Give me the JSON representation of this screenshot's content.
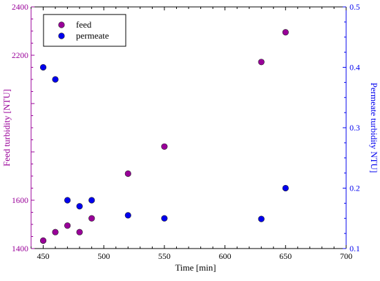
{
  "chart_data": {
    "type": "scatter",
    "xlabel": "Time [min]",
    "ylabel_left": "Feed turbidity [NTU]",
    "ylabel_right": "Permeate turbidity NTU]",
    "xlim": [
      440,
      700
    ],
    "ylim_left": [
      1400,
      2400
    ],
    "ylim_right": [
      0.1,
      0.5
    ],
    "x_ticks": [
      450,
      500,
      550,
      600,
      650,
      700
    ],
    "y_ticks_left": [
      1400,
      1600,
      2200,
      2400
    ],
    "y_ticks_right": [
      0.1,
      0.2,
      0.3,
      0.4,
      0.5
    ],
    "grid": false,
    "legend_position": "top-left",
    "colors": {
      "feed": "#990099",
      "permeate": "#0000ee",
      "axis_left": "#990099",
      "axis_right": "#0000ee",
      "axis_bottom": "#000000"
    },
    "series": [
      {
        "name": "feed",
        "axis": "left",
        "x": [
          450,
          460,
          470,
          480,
          490,
          520,
          550,
          630,
          650
        ],
        "y": [
          1433,
          1468,
          1495,
          1468,
          1525,
          1710,
          1822,
          2172,
          2295
        ]
      },
      {
        "name": "permeate",
        "axis": "right",
        "x": [
          450,
          460,
          470,
          480,
          490,
          520,
          550,
          630,
          650
        ],
        "y": [
          0.4,
          0.38,
          0.18,
          0.17,
          0.18,
          0.155,
          0.15,
          0.149,
          0.2
        ]
      }
    ]
  }
}
